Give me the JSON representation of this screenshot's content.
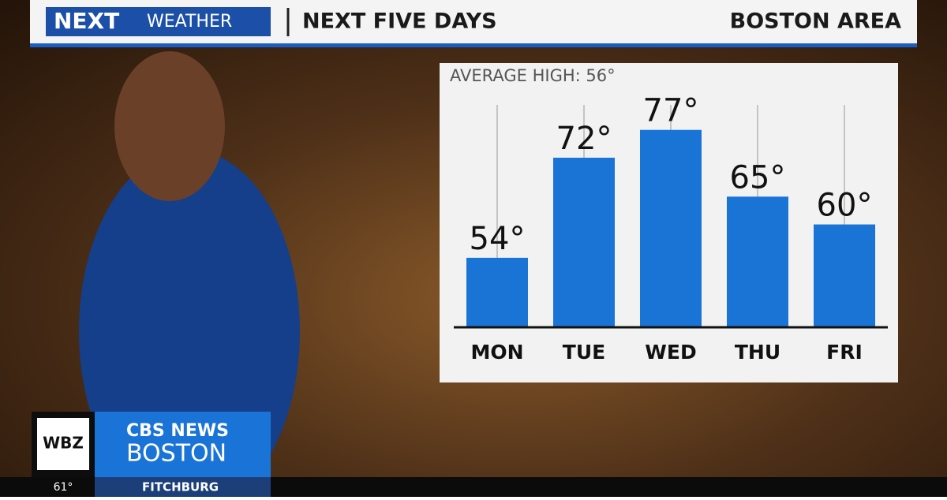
{
  "header": {
    "logo_next": "NEXT",
    "logo_weather": "WEATHER",
    "title": "NEXT FIVE DAYS",
    "location": "BOSTON AREA"
  },
  "chart_data": {
    "type": "bar",
    "subtitle": "AVERAGE HIGH:  56°",
    "categories": [
      "MON",
      "TUE",
      "WED",
      "THU",
      "FRI"
    ],
    "values": [
      54,
      72,
      77,
      65,
      60
    ],
    "value_labels": [
      "54°",
      "72°",
      "77°",
      "65°",
      "60°"
    ],
    "color": "#1a74d6",
    "ylim": [
      41.5,
      81.5
    ],
    "grid": true
  },
  "branding": {
    "station": "WBZ",
    "network": "CBS NEWS",
    "city": "BOSTON"
  },
  "ticker": {
    "temperature": "61°",
    "town": "FITCHBURG"
  }
}
